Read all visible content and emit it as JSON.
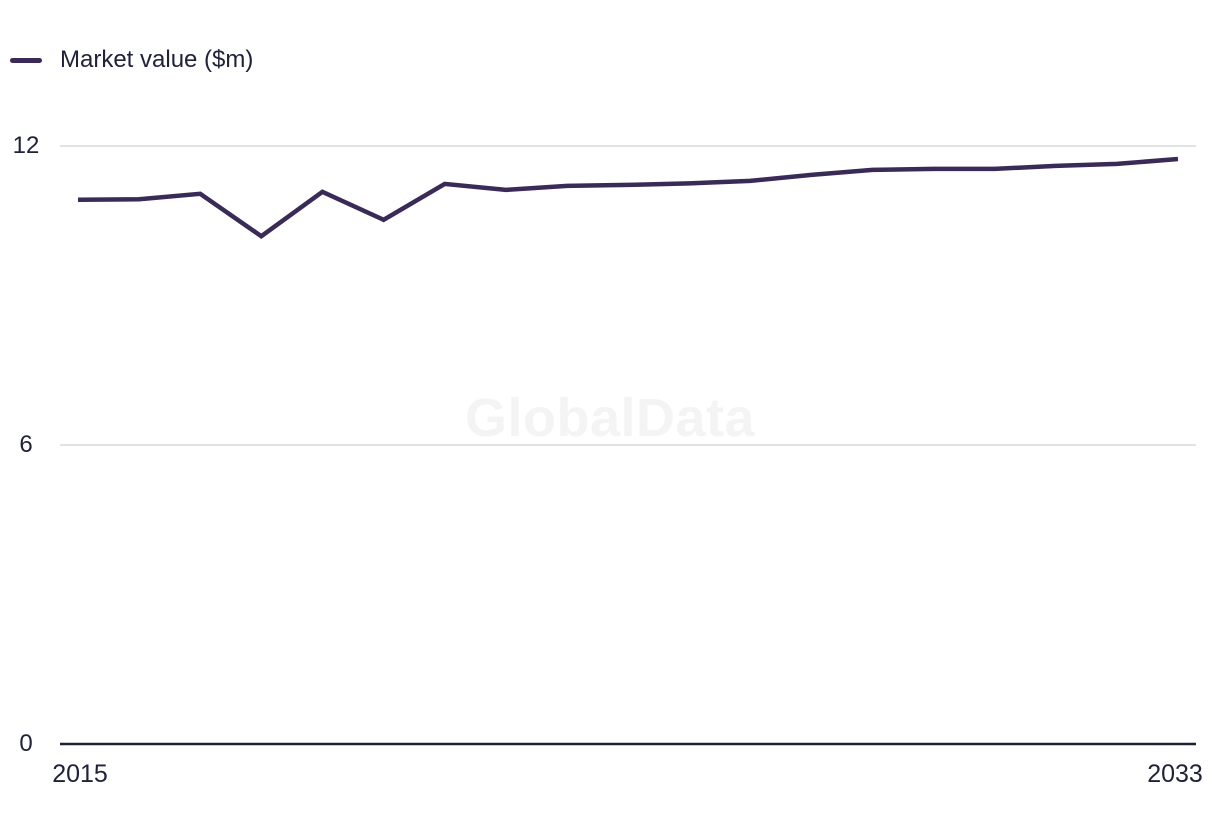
{
  "legend": {
    "label": "Market value ($m)"
  },
  "watermark": "GlobalData",
  "colors": {
    "line": "#3a2a58",
    "text": "#20223a",
    "grid": "#e2e2e2",
    "axis": "#1e2235",
    "watermark": "#f4f4f4"
  },
  "chart_data": {
    "type": "line",
    "title": "",
    "xlabel": "",
    "ylabel": "",
    "x": [
      2015,
      2016,
      2017,
      2018,
      2019,
      2020,
      2021,
      2022,
      2023,
      2024,
      2025,
      2026,
      2027,
      2028,
      2029,
      2030,
      2031,
      2032,
      2033
    ],
    "series": [
      {
        "name": "Market value ($m)",
        "color": "#3a2a58",
        "values": [
          10.92,
          10.93,
          11.04,
          10.19,
          11.08,
          10.52,
          11.24,
          11.12,
          11.2,
          11.22,
          11.25,
          11.3,
          11.42,
          11.52,
          11.54,
          11.54,
          11.6,
          11.64,
          11.74
        ]
      }
    ],
    "ylim": [
      0,
      12
    ],
    "yticks": [
      0,
      6,
      12
    ],
    "xticks_shown": [
      "2015",
      "2033"
    ],
    "grid": "horizontal-only",
    "legend_position": "top-left"
  }
}
